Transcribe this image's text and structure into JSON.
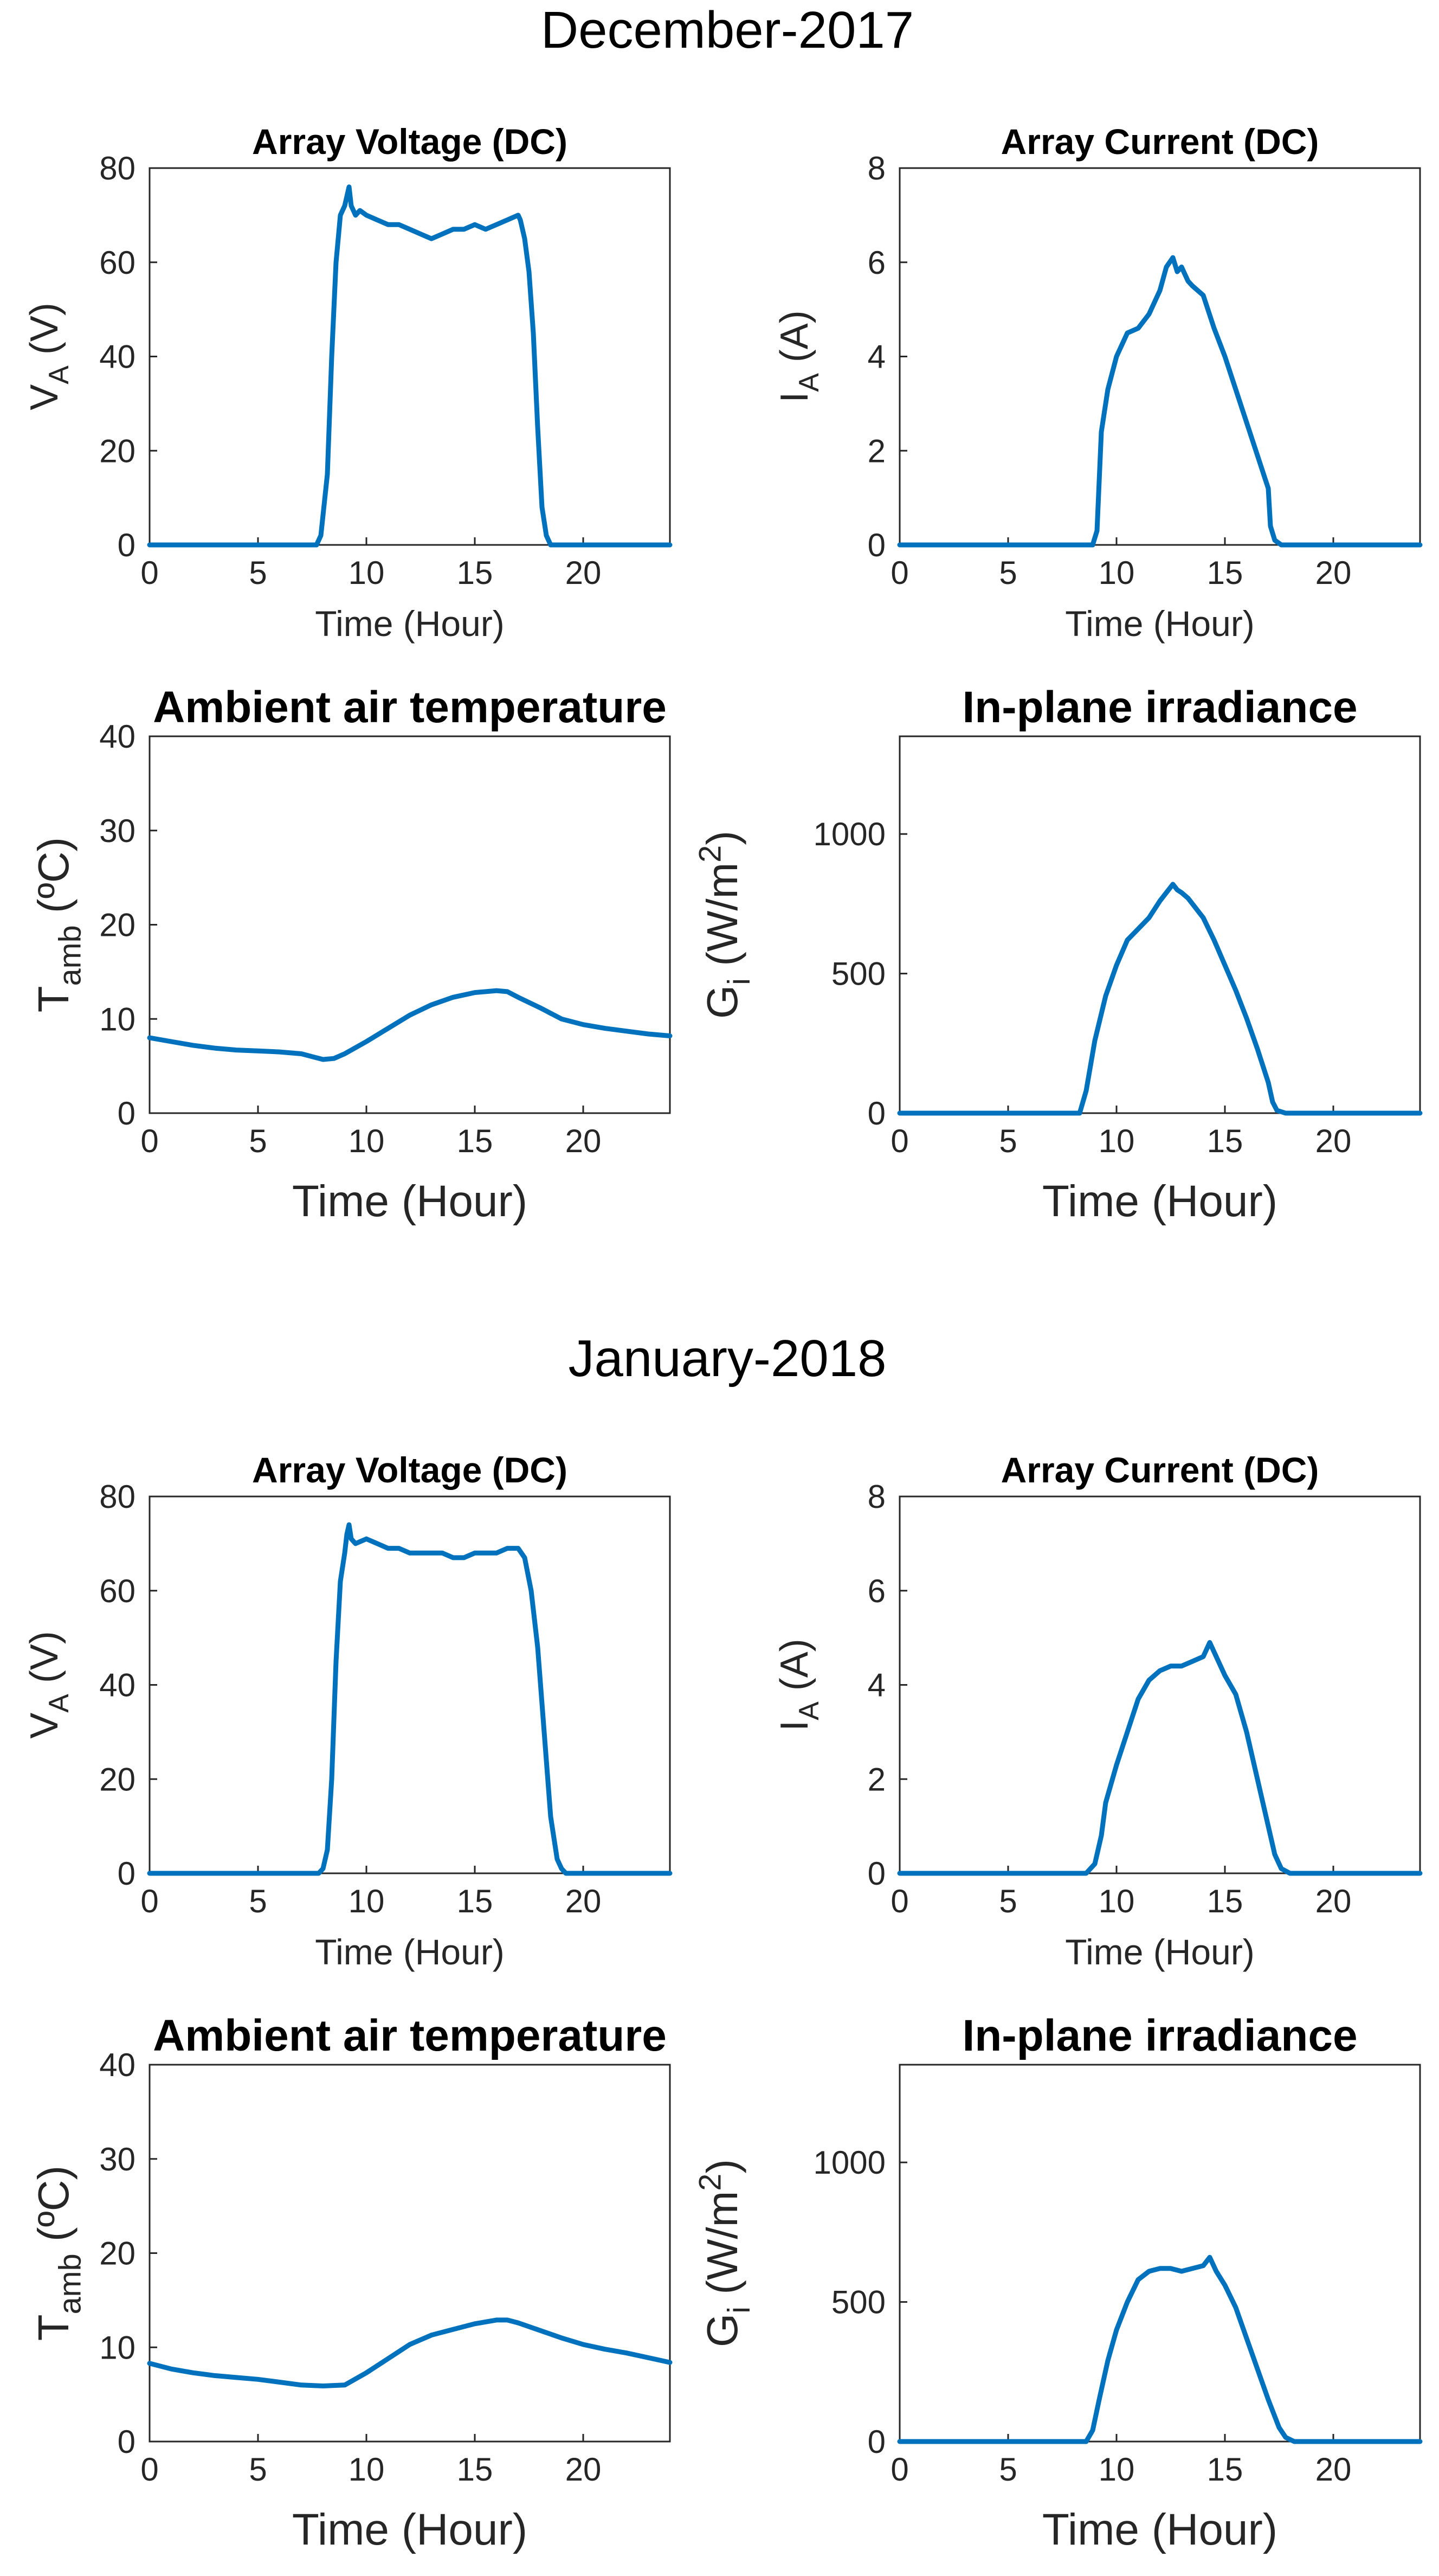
{
  "colors": {
    "series": "#0072BD"
  },
  "chart_data": [
    {
      "id": "dec-2017",
      "figure_title": "December-2017",
      "panels": [
        {
          "key": "voltage",
          "type": "line",
          "title": "Array Voltage (DC)",
          "ylabel": {
            "main": "V",
            "sub": "A",
            "unit": " (V)"
          },
          "xlabel": "Time (Hour)",
          "xlim": [
            0,
            24
          ],
          "ylim": [
            0,
            80
          ],
          "xticks": [
            0,
            5,
            10,
            15,
            20
          ],
          "yticks": [
            0,
            20,
            40,
            60,
            80
          ],
          "series": [
            {
              "name": "Array Voltage",
              "x": [
                0,
                7.7,
                7.9,
                8.2,
                8.4,
                8.6,
                8.8,
                9,
                9.1,
                9.2,
                9.3,
                9.5,
                9.7,
                10,
                10.5,
                11,
                11.5,
                12,
                12.5,
                13,
                13.5,
                14,
                14.5,
                15,
                15.5,
                16,
                16.5,
                17,
                17.1,
                17.3,
                17.5,
                17.7,
                17.9,
                18.1,
                18.3,
                18.5,
                24
              ],
              "y": [
                0,
                0,
                2,
                15,
                40,
                60,
                70,
                72,
                74,
                76,
                72,
                70,
                71,
                70,
                69,
                68,
                68,
                67,
                66,
                65,
                66,
                67,
                67,
                68,
                67,
                68,
                69,
                70,
                69,
                65,
                58,
                45,
                25,
                8,
                2,
                0,
                0
              ]
            }
          ]
        },
        {
          "key": "current",
          "type": "line",
          "title": "Array Current (DC)",
          "ylabel": {
            "main": "I",
            "sub": "A",
            "unit": " (A)"
          },
          "xlabel": "Time (Hour)",
          "xlim": [
            0,
            24
          ],
          "ylim": [
            0,
            8
          ],
          "xticks": [
            0,
            5,
            10,
            15,
            20
          ],
          "yticks": [
            0,
            2,
            4,
            6,
            8
          ],
          "series": [
            {
              "name": "Array Current",
              "x": [
                0,
                8.9,
                9.1,
                9.3,
                9.6,
                10,
                10.5,
                11,
                11.5,
                12,
                12.3,
                12.6,
                12.8,
                13,
                13.3,
                13.5,
                14,
                14.5,
                15,
                15.5,
                16,
                16.5,
                17,
                17.1,
                17.3,
                17.6,
                24
              ],
              "y": [
                0,
                0,
                0.3,
                2.4,
                3.3,
                4.0,
                4.5,
                4.6,
                4.9,
                5.4,
                5.9,
                6.1,
                5.8,
                5.9,
                5.6,
                5.5,
                5.3,
                4.6,
                4.0,
                3.3,
                2.6,
                1.9,
                1.2,
                0.4,
                0.1,
                0,
                0
              ]
            }
          ]
        },
        {
          "key": "temperature",
          "type": "line",
          "title": "Ambient air temperature",
          "ylabel": {
            "main": "T",
            "sub": "amb",
            "unit": " (ºC)"
          },
          "xlabel": "Time (Hour)",
          "xlim": [
            0,
            24
          ],
          "ylim": [
            0,
            40
          ],
          "xticks": [
            0,
            5,
            10,
            15,
            20
          ],
          "yticks": [
            0,
            10,
            20,
            30,
            40
          ],
          "series": [
            {
              "name": "Ambient temperature",
              "x": [
                0,
                1,
                2,
                3,
                4,
                5,
                6,
                7,
                7.5,
                8,
                8.5,
                9,
                10,
                11,
                12,
                13,
                14,
                15,
                16,
                16.5,
                17,
                18,
                19,
                20,
                21,
                22,
                23,
                24
              ],
              "y": [
                8,
                7.6,
                7.2,
                6.9,
                6.7,
                6.6,
                6.5,
                6.3,
                6.0,
                5.7,
                5.8,
                6.3,
                7.6,
                9.0,
                10.4,
                11.5,
                12.3,
                12.8,
                13.0,
                12.9,
                12.3,
                11.2,
                10.0,
                9.4,
                9.0,
                8.7,
                8.4,
                8.2
              ]
            }
          ]
        },
        {
          "key": "irradiance",
          "type": "line",
          "title": "In-plane irradiance",
          "ylabel": {
            "main": "G",
            "sub": "i",
            "unit": " (W/m",
            "sup": "2",
            "tail": ")"
          },
          "xlabel": "Time (Hour)",
          "xlim": [
            0,
            24
          ],
          "ylim": [
            0,
            1350
          ],
          "xticks": [
            0,
            5,
            10,
            15,
            20
          ],
          "yticks": [
            0,
            500,
            1000
          ],
          "series": [
            {
              "name": "In-plane irradiance",
              "x": [
                0,
                8.3,
                8.6,
                9,
                9.5,
                10,
                10.5,
                11,
                11.5,
                12,
                12.3,
                12.6,
                12.8,
                13,
                13.3,
                13.6,
                14,
                14.5,
                15,
                15.5,
                16,
                16.5,
                17,
                17.2,
                17.4,
                17.8,
                24
              ],
              "y": [
                0,
                0,
                80,
                260,
                420,
                530,
                620,
                660,
                700,
                760,
                790,
                820,
                800,
                790,
                770,
                740,
                700,
                620,
                530,
                440,
                340,
                230,
                110,
                40,
                10,
                0,
                0
              ]
            }
          ]
        }
      ]
    },
    {
      "id": "jan-2018",
      "figure_title": "January-2018",
      "panels": [
        {
          "key": "voltage",
          "type": "line",
          "title": "Array Voltage (DC)",
          "ylabel": {
            "main": "V",
            "sub": "A",
            "unit": " (V)"
          },
          "xlabel": "Time (Hour)",
          "xlim": [
            0,
            24
          ],
          "ylim": [
            0,
            80
          ],
          "xticks": [
            0,
            5,
            10,
            15,
            20
          ],
          "yticks": [
            0,
            20,
            40,
            60,
            80
          ],
          "series": [
            {
              "name": "Array Voltage",
              "x": [
                0,
                7.8,
                8.0,
                8.2,
                8.4,
                8.6,
                8.8,
                9,
                9.1,
                9.2,
                9.3,
                9.5,
                10,
                10.5,
                11,
                11.5,
                12,
                12.5,
                13,
                13.5,
                14,
                14.5,
                15,
                15.5,
                16,
                16.5,
                17,
                17.3,
                17.6,
                17.9,
                18.2,
                18.5,
                18.8,
                19.0,
                19.2,
                24
              ],
              "y": [
                0,
                0,
                1,
                5,
                20,
                45,
                62,
                68,
                72,
                74,
                71,
                70,
                71,
                70,
                69,
                69,
                68,
                68,
                68,
                68,
                67,
                67,
                68,
                68,
                68,
                69,
                69,
                67,
                60,
                48,
                30,
                12,
                3,
                1,
                0,
                0
              ]
            }
          ]
        },
        {
          "key": "current",
          "type": "line",
          "title": "Array Current (DC)",
          "ylabel": {
            "main": "I",
            "sub": "A",
            "unit": " (A)"
          },
          "xlabel": "Time (Hour)",
          "xlim": [
            0,
            24
          ],
          "ylim": [
            0,
            8
          ],
          "xticks": [
            0,
            5,
            10,
            15,
            20
          ],
          "yticks": [
            0,
            2,
            4,
            6,
            8
          ],
          "series": [
            {
              "name": "Array Current",
              "x": [
                0,
                8.6,
                9.0,
                9.3,
                9.5,
                10,
                10.5,
                11,
                11.5,
                12,
                12.5,
                13,
                13.5,
                14,
                14.3,
                14.6,
                15,
                15.5,
                16,
                16.5,
                17,
                17.3,
                17.6,
                18,
                24
              ],
              "y": [
                0,
                0,
                0.2,
                0.8,
                1.5,
                2.3,
                3.0,
                3.7,
                4.1,
                4.3,
                4.4,
                4.4,
                4.5,
                4.6,
                4.9,
                4.6,
                4.2,
                3.8,
                3.0,
                2.0,
                1.0,
                0.4,
                0.1,
                0,
                0
              ]
            }
          ]
        },
        {
          "key": "temperature",
          "type": "line",
          "title": "Ambient air temperature",
          "ylabel": {
            "main": "T",
            "sub": "amb",
            "unit": " (ºC)"
          },
          "xlabel": "Time (Hour)",
          "xlim": [
            0,
            24
          ],
          "ylim": [
            0,
            40
          ],
          "xticks": [
            0,
            5,
            10,
            15,
            20
          ],
          "yticks": [
            0,
            10,
            20,
            30,
            40
          ],
          "series": [
            {
              "name": "Ambient temperature",
              "x": [
                0,
                1,
                2,
                3,
                4,
                5,
                6,
                7,
                8,
                9,
                10,
                11,
                12,
                13,
                14,
                15,
                16,
                16.5,
                17,
                18,
                19,
                20,
                21,
                22,
                23,
                24
              ],
              "y": [
                8.3,
                7.7,
                7.3,
                7.0,
                6.8,
                6.6,
                6.3,
                6.0,
                5.9,
                6.0,
                7.3,
                8.8,
                10.3,
                11.3,
                11.9,
                12.5,
                12.9,
                12.9,
                12.6,
                11.8,
                11.0,
                10.3,
                9.8,
                9.4,
                8.9,
                8.4
              ]
            }
          ]
        },
        {
          "key": "irradiance",
          "type": "line",
          "title": "In-plane irradiance",
          "ylabel": {
            "main": "G",
            "sub": "i",
            "unit": " (W/m",
            "sup": "2",
            "tail": ")"
          },
          "xlabel": "Time (Hour)",
          "xlim": [
            0,
            24
          ],
          "ylim": [
            0,
            1350
          ],
          "xticks": [
            0,
            5,
            10,
            15,
            20
          ],
          "yticks": [
            0,
            500,
            1000
          ],
          "series": [
            {
              "name": "In-plane irradiance",
              "x": [
                0,
                8.6,
                8.9,
                9.2,
                9.6,
                10,
                10.5,
                11,
                11.5,
                12,
                12.5,
                13,
                13.5,
                14,
                14.3,
                14.6,
                15,
                15.5,
                16,
                16.5,
                17,
                17.5,
                17.8,
                18.2,
                24
              ],
              "y": [
                0,
                0,
                40,
                150,
                290,
                400,
                500,
                580,
                610,
                620,
                620,
                610,
                620,
                630,
                660,
                610,
                560,
                480,
                370,
                260,
                150,
                50,
                15,
                0,
                0
              ]
            }
          ]
        }
      ]
    }
  ]
}
